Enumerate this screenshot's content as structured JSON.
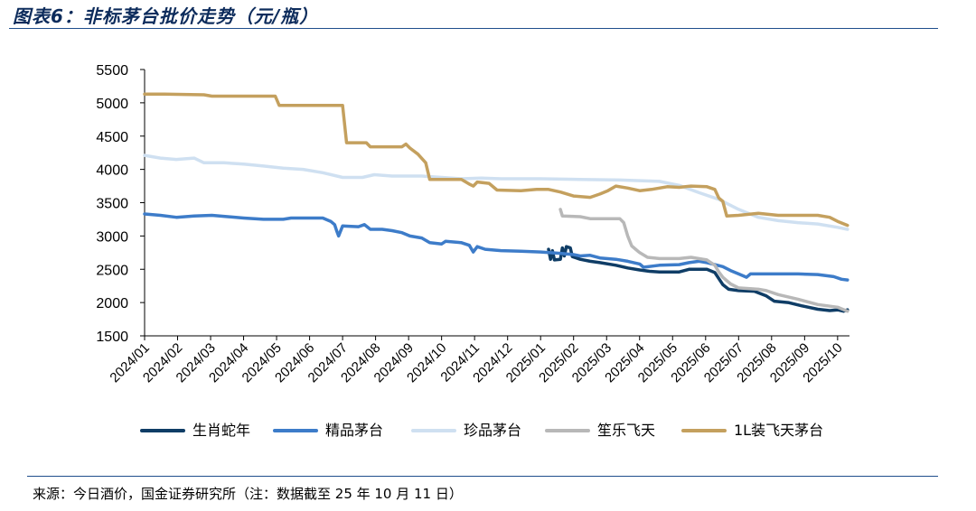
{
  "header": {
    "title": "图表6：非标茅台批价走势（元/瓶）"
  },
  "footer": {
    "source": "来源：今日酒价，国金证券研究所（注：数据截至 25 年 10 月 11 日）"
  },
  "chart_data": {
    "type": "line",
    "title": "图表6：非标茅台批价走势（元/瓶）",
    "xlabel": "",
    "ylabel": "",
    "ylim": [
      1500,
      5500
    ],
    "yticks": [
      "1500",
      "2000",
      "2500",
      "3000",
      "3500",
      "4000",
      "4500",
      "5000",
      "5500"
    ],
    "xlim": [
      2024.0,
      2025.78
    ],
    "xticks": [
      {
        "label": "2024/01",
        "x": 2024.0
      },
      {
        "label": "2024/02",
        "x": 2024.0833
      },
      {
        "label": "2024/03",
        "x": 2024.1667
      },
      {
        "label": "2024/04",
        "x": 2024.25
      },
      {
        "label": "2024/05",
        "x": 2024.3333
      },
      {
        "label": "2024/06",
        "x": 2024.4167
      },
      {
        "label": "2024/07",
        "x": 2024.5
      },
      {
        "label": "2024/08",
        "x": 2024.5833
      },
      {
        "label": "2024/09",
        "x": 2024.6667
      },
      {
        "label": "2024/10",
        "x": 2024.75
      },
      {
        "label": "2024/11",
        "x": 2024.8333
      },
      {
        "label": "2024/12",
        "x": 2024.9167
      },
      {
        "label": "2025/01",
        "x": 2025.0
      },
      {
        "label": "2025/02",
        "x": 2025.0833
      },
      {
        "label": "2025/03",
        "x": 2025.1667
      },
      {
        "label": "2025/04",
        "x": 2025.25
      },
      {
        "label": "2025/05",
        "x": 2025.3333
      },
      {
        "label": "2025/06",
        "x": 2025.4167
      },
      {
        "label": "2025/07",
        "x": 2025.5
      },
      {
        "label": "2025/08",
        "x": 2025.5833
      },
      {
        "label": "2025/09",
        "x": 2025.6667
      },
      {
        "label": "2025/10",
        "x": 2025.75
      }
    ],
    "grid": false,
    "legend_position": "bottom",
    "series": [
      {
        "name": "生肖蛇年",
        "color": "#0f3d66",
        "points": [
          [
            2025.02,
            2800
          ],
          [
            2025.025,
            2650
          ],
          [
            2025.03,
            2780
          ],
          [
            2025.035,
            2640
          ],
          [
            2025.05,
            2650
          ],
          [
            2025.055,
            2820
          ],
          [
            2025.06,
            2700
          ],
          [
            2025.065,
            2840
          ],
          [
            2025.075,
            2820
          ],
          [
            2025.08,
            2690
          ],
          [
            2025.1,
            2650
          ],
          [
            2025.125,
            2620
          ],
          [
            2025.15,
            2600
          ],
          [
            2025.19,
            2560
          ],
          [
            2025.22,
            2520
          ],
          [
            2025.25,
            2490
          ],
          [
            2025.275,
            2470
          ],
          [
            2025.3,
            2460
          ],
          [
            2025.35,
            2460
          ],
          [
            2025.375,
            2500
          ],
          [
            2025.42,
            2500
          ],
          [
            2025.44,
            2450
          ],
          [
            2025.46,
            2270
          ],
          [
            2025.475,
            2200
          ],
          [
            2025.5,
            2180
          ],
          [
            2025.54,
            2170
          ],
          [
            2025.57,
            2100
          ],
          [
            2025.59,
            2020
          ],
          [
            2025.625,
            2000
          ],
          [
            2025.66,
            1950
          ],
          [
            2025.7,
            1900
          ],
          [
            2025.73,
            1880
          ],
          [
            2025.75,
            1890
          ],
          [
            2025.765,
            1870
          ],
          [
            2025.775,
            1890
          ]
        ]
      },
      {
        "name": "精品茅台",
        "color": "#3d7cc9",
        "points": [
          [
            2024.0,
            3330
          ],
          [
            2024.04,
            3310
          ],
          [
            2024.08,
            3280
          ],
          [
            2024.125,
            3300
          ],
          [
            2024.17,
            3310
          ],
          [
            2024.21,
            3290
          ],
          [
            2024.25,
            3270
          ],
          [
            2024.3,
            3250
          ],
          [
            2024.35,
            3250
          ],
          [
            2024.37,
            3270
          ],
          [
            2024.45,
            3270
          ],
          [
            2024.47,
            3220
          ],
          [
            2024.48,
            3170
          ],
          [
            2024.485,
            3080
          ],
          [
            2024.49,
            3000
          ],
          [
            2024.5,
            3150
          ],
          [
            2024.54,
            3140
          ],
          [
            2024.555,
            3170
          ],
          [
            2024.57,
            3100
          ],
          [
            2024.6,
            3100
          ],
          [
            2024.625,
            3080
          ],
          [
            2024.65,
            3050
          ],
          [
            2024.67,
            3000
          ],
          [
            2024.7,
            2970
          ],
          [
            2024.72,
            2900
          ],
          [
            2024.75,
            2880
          ],
          [
            2024.76,
            2920
          ],
          [
            2024.8,
            2900
          ],
          [
            2024.82,
            2860
          ],
          [
            2024.83,
            2760
          ],
          [
            2024.84,
            2840
          ],
          [
            2024.86,
            2800
          ],
          [
            2024.9,
            2780
          ],
          [
            2024.95,
            2770
          ],
          [
            2025.0,
            2760
          ],
          [
            2025.05,
            2740
          ],
          [
            2025.083,
            2720
          ],
          [
            2025.1,
            2700
          ],
          [
            2025.125,
            2710
          ],
          [
            2025.15,
            2670
          ],
          [
            2025.19,
            2650
          ],
          [
            2025.22,
            2620
          ],
          [
            2025.25,
            2580
          ],
          [
            2025.26,
            2530
          ],
          [
            2025.3,
            2560
          ],
          [
            2025.35,
            2570
          ],
          [
            2025.375,
            2600
          ],
          [
            2025.4,
            2620
          ],
          [
            2025.42,
            2600
          ],
          [
            2025.44,
            2570
          ],
          [
            2025.46,
            2540
          ],
          [
            2025.48,
            2480
          ],
          [
            2025.5,
            2430
          ],
          [
            2025.52,
            2380
          ],
          [
            2025.53,
            2430
          ],
          [
            2025.65,
            2430
          ],
          [
            2025.7,
            2420
          ],
          [
            2025.74,
            2390
          ],
          [
            2025.76,
            2350
          ],
          [
            2025.775,
            2340
          ]
        ]
      },
      {
        "name": "珍品茅台",
        "color": "#cfe0f1",
        "points": [
          [
            2024.0,
            4210
          ],
          [
            2024.04,
            4170
          ],
          [
            2024.08,
            4150
          ],
          [
            2024.125,
            4170
          ],
          [
            2024.15,
            4100
          ],
          [
            2024.2,
            4100
          ],
          [
            2024.25,
            4080
          ],
          [
            2024.3,
            4050
          ],
          [
            2024.35,
            4020
          ],
          [
            2024.4,
            4000
          ],
          [
            2024.45,
            3950
          ],
          [
            2024.5,
            3880
          ],
          [
            2024.55,
            3880
          ],
          [
            2024.58,
            3920
          ],
          [
            2024.625,
            3900
          ],
          [
            2024.7,
            3900
          ],
          [
            2024.75,
            3880
          ],
          [
            2024.8,
            3860
          ],
          [
            2024.85,
            3870
          ],
          [
            2024.9,
            3860
          ],
          [
            2025.0,
            3860
          ],
          [
            2025.1,
            3850
          ],
          [
            2025.2,
            3840
          ],
          [
            2025.3,
            3820
          ],
          [
            2025.35,
            3760
          ],
          [
            2025.4,
            3650
          ],
          [
            2025.45,
            3550
          ],
          [
            2025.5,
            3400
          ],
          [
            2025.55,
            3280
          ],
          [
            2025.6,
            3230
          ],
          [
            2025.65,
            3200
          ],
          [
            2025.7,
            3180
          ],
          [
            2025.75,
            3130
          ],
          [
            2025.775,
            3100
          ]
        ]
      },
      {
        "name": "笙乐飞天",
        "color": "#b8b8b8",
        "points": [
          [
            2025.05,
            3400
          ],
          [
            2025.055,
            3300
          ],
          [
            2025.1,
            3290
          ],
          [
            2025.125,
            3260
          ],
          [
            2025.2,
            3260
          ],
          [
            2025.21,
            3200
          ],
          [
            2025.22,
            3000
          ],
          [
            2025.23,
            2850
          ],
          [
            2025.24,
            2800
          ],
          [
            2025.25,
            2750
          ],
          [
            2025.27,
            2680
          ],
          [
            2025.3,
            2660
          ],
          [
            2025.35,
            2660
          ],
          [
            2025.38,
            2680
          ],
          [
            2025.42,
            2640
          ],
          [
            2025.44,
            2560
          ],
          [
            2025.45,
            2460
          ],
          [
            2025.46,
            2380
          ],
          [
            2025.48,
            2280
          ],
          [
            2025.5,
            2220
          ],
          [
            2025.55,
            2200
          ],
          [
            2025.57,
            2180
          ],
          [
            2025.6,
            2120
          ],
          [
            2025.65,
            2050
          ],
          [
            2025.7,
            1970
          ],
          [
            2025.75,
            1930
          ],
          [
            2025.775,
            1870
          ]
        ]
      },
      {
        "name": "1L装飞天茅台",
        "color": "#c4a05e",
        "points": [
          [
            2024.0,
            5130
          ],
          [
            2024.05,
            5130
          ],
          [
            2024.15,
            5120
          ],
          [
            2024.17,
            5100
          ],
          [
            2024.3,
            5100
          ],
          [
            2024.33,
            5100
          ],
          [
            2024.34,
            4960
          ],
          [
            2024.5,
            4960
          ],
          [
            2024.51,
            4400
          ],
          [
            2024.56,
            4400
          ],
          [
            2024.57,
            4340
          ],
          [
            2024.65,
            4340
          ],
          [
            2024.66,
            4380
          ],
          [
            2024.67,
            4320
          ],
          [
            2024.69,
            4230
          ],
          [
            2024.71,
            4100
          ],
          [
            2024.72,
            3850
          ],
          [
            2024.75,
            3850
          ],
          [
            2024.8,
            3850
          ],
          [
            2024.82,
            3780
          ],
          [
            2024.83,
            3750
          ],
          [
            2024.84,
            3810
          ],
          [
            2024.87,
            3790
          ],
          [
            2024.89,
            3690
          ],
          [
            2024.95,
            3680
          ],
          [
            2024.99,
            3700
          ],
          [
            2025.02,
            3700
          ],
          [
            2025.05,
            3660
          ],
          [
            2025.083,
            3600
          ],
          [
            2025.125,
            3580
          ],
          [
            2025.15,
            3630
          ],
          [
            2025.17,
            3680
          ],
          [
            2025.19,
            3750
          ],
          [
            2025.22,
            3720
          ],
          [
            2025.25,
            3680
          ],
          [
            2025.28,
            3700
          ],
          [
            2025.3,
            3720
          ],
          [
            2025.32,
            3740
          ],
          [
            2025.35,
            3730
          ],
          [
            2025.38,
            3750
          ],
          [
            2025.42,
            3740
          ],
          [
            2025.44,
            3700
          ],
          [
            2025.45,
            3570
          ],
          [
            2025.46,
            3520
          ],
          [
            2025.47,
            3300
          ],
          [
            2025.5,
            3310
          ],
          [
            2025.55,
            3340
          ],
          [
            2025.6,
            3310
          ],
          [
            2025.65,
            3310
          ],
          [
            2025.7,
            3310
          ],
          [
            2025.73,
            3280
          ],
          [
            2025.75,
            3220
          ],
          [
            2025.775,
            3160
          ]
        ]
      }
    ]
  }
}
